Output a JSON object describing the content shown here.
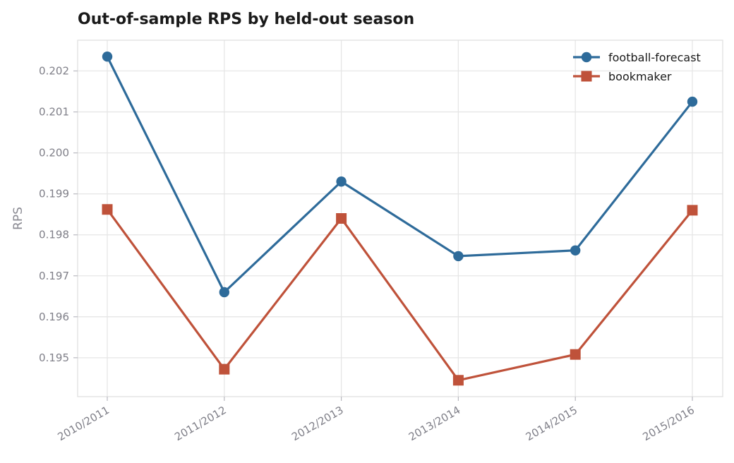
{
  "chart_data": {
    "type": "line",
    "title": "Out-of-sample RPS by held-out season",
    "xlabel": "",
    "ylabel": "RPS",
    "categories": [
      "2010/2011",
      "2011/2012",
      "2012/2013",
      "2013/2014",
      "2014/2015",
      "2015/2016"
    ],
    "yticks": [
      "0.195",
      "0.196",
      "0.197",
      "0.198",
      "0.199",
      "0.200",
      "0.201",
      "0.202"
    ],
    "ylim": [
      0.19405,
      0.20275
    ],
    "grid": true,
    "legend_position": "top-right",
    "series": [
      {
        "name": "football-forecast",
        "color": "#2e6b9a",
        "marker": "circle",
        "values": [
          0.20235,
          0.1966,
          0.1993,
          0.19748,
          0.19762,
          0.20125
        ]
      },
      {
        "name": "bookmaker",
        "color": "#bf523a",
        "marker": "square",
        "values": [
          0.19862,
          0.19472,
          0.1984,
          0.19445,
          0.19508,
          0.1986
        ]
      }
    ]
  }
}
